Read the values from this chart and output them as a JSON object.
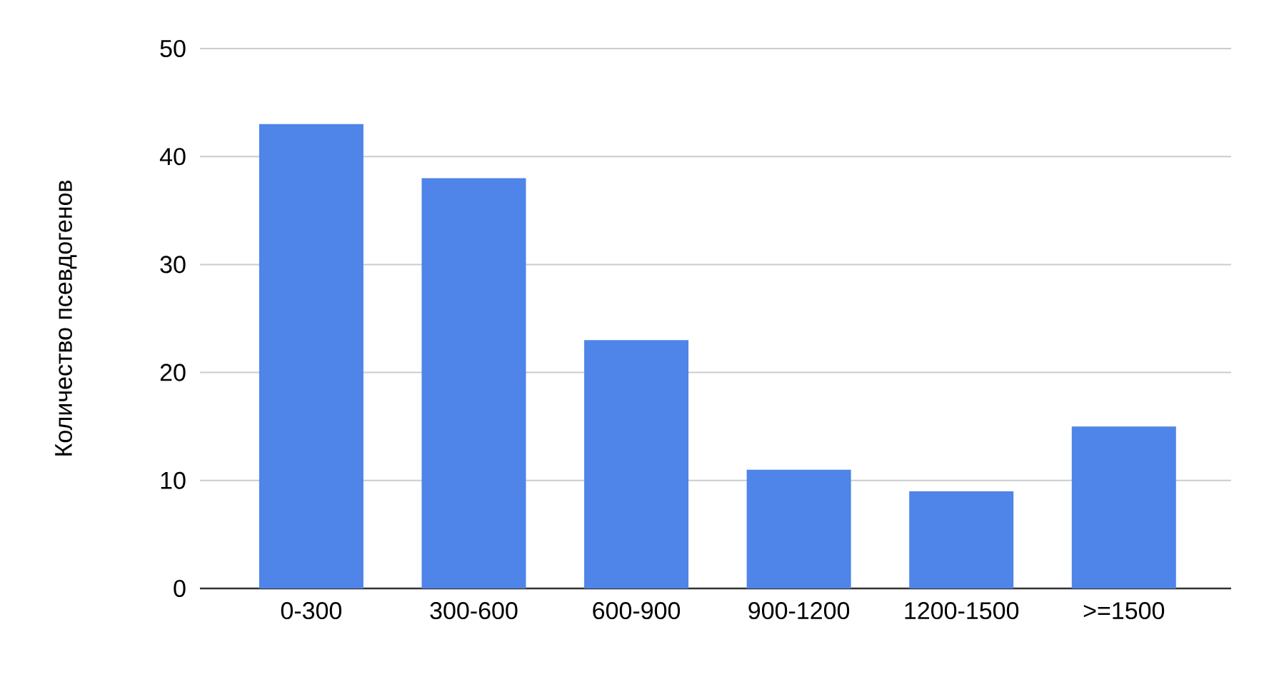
{
  "chart_data": {
    "type": "bar",
    "ylabel": "Количество псевдогенов",
    "categories": [
      "0-300",
      "300-600",
      "600-900",
      "900-1200",
      "1200-1500",
      ">=1500"
    ],
    "values": [
      43,
      38,
      23,
      11,
      9,
      15
    ],
    "color": "#4f84e8",
    "ylim": [
      0,
      50
    ],
    "yticks": [
      0,
      10,
      20,
      30,
      40,
      50
    ],
    "grid": "y"
  }
}
